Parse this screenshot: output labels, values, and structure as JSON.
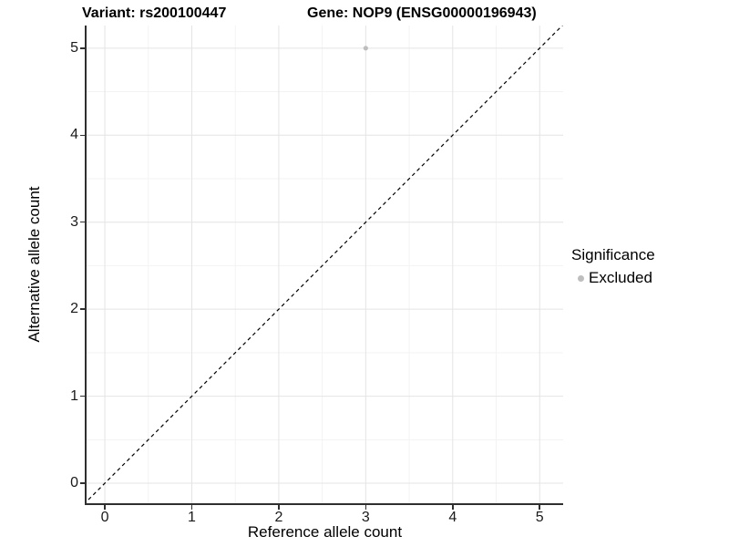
{
  "chart_data": {
    "type": "scatter",
    "title_left": "Variant: rs200100447",
    "title_right": "Gene: NOP9 (ENSG00000196943)",
    "xlabel": "Reference allele count",
    "ylabel": "Alternative allele count",
    "xlim": [
      -0.21,
      5.27
    ],
    "ylim": [
      -0.23,
      5.26
    ],
    "xticks": [
      0,
      1,
      2,
      3,
      4,
      5
    ],
    "yticks": [
      0,
      1,
      2,
      3,
      4,
      5
    ],
    "grid": "major at integers, minor at 0.5 steps",
    "points": [
      {
        "x": 3,
        "y": 5,
        "series": "Excluded"
      }
    ],
    "reference_line": {
      "type": "identity y=x",
      "style": "dashed",
      "color": "#000000"
    },
    "legend": {
      "position": "right",
      "title": "Significance",
      "entries": [
        {
          "label": "Excluded",
          "color": "#bebebe",
          "marker": "dot"
        }
      ]
    },
    "colors": {
      "excluded_point": "#bebebe",
      "grid_major": "#e4e4e4",
      "grid_minor": "#f3f3f3",
      "axis_line": "#2f2f2f",
      "tick_text": "#1a1a1a"
    }
  }
}
